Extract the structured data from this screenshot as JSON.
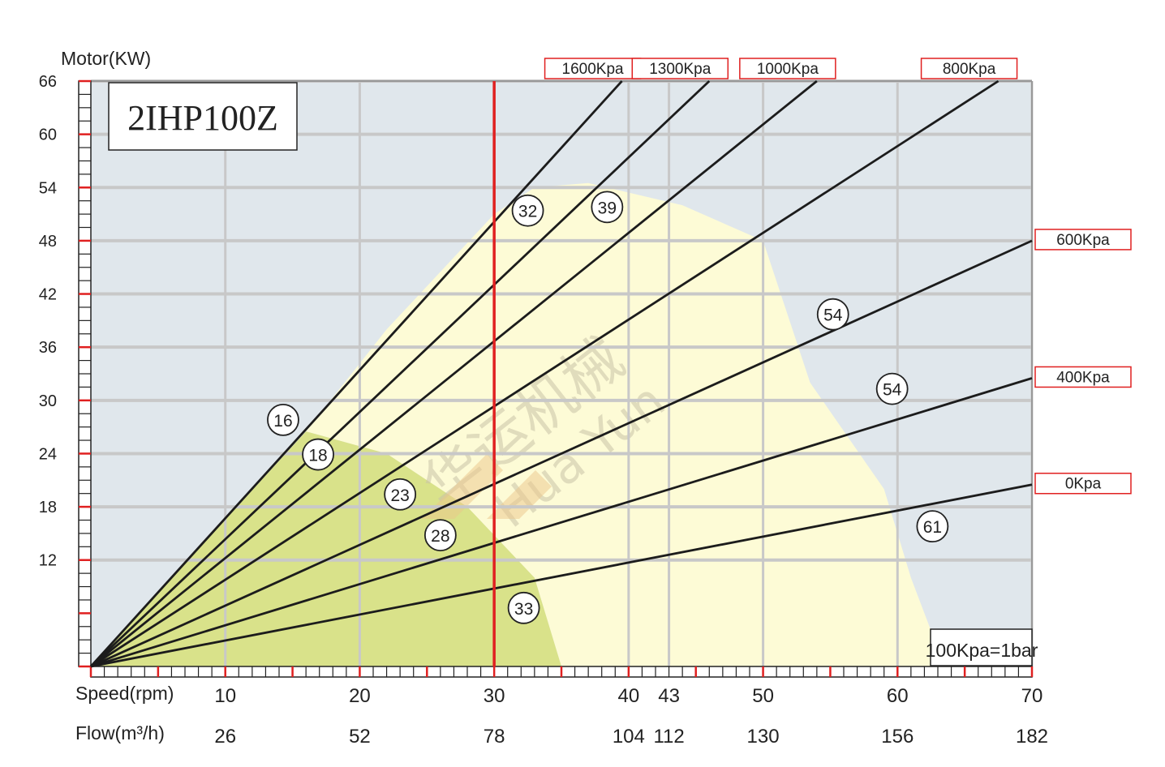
{
  "chart_data": {
    "type": "line",
    "title": "2IHP100Z",
    "ylabel": "Motor(KW)",
    "xlabel": "Speed(rpm)",
    "xlabel2": "Flow(m³/h)",
    "note": "100Kpa=1bar",
    "ylim": [
      0,
      66
    ],
    "xlim": [
      0,
      70
    ],
    "grid": true,
    "y_ticks": [
      12,
      18,
      24,
      30,
      36,
      42,
      48,
      54,
      60,
      66
    ],
    "x_ticks": [
      {
        "speed": 10,
        "flow": "26"
      },
      {
        "speed": 20,
        "flow": "52"
      },
      {
        "speed": 30,
        "flow": "78"
      },
      {
        "speed": 40,
        "flow": "104"
      },
      {
        "speed": 43,
        "flow": "112"
      },
      {
        "speed": 50,
        "flow": "130"
      },
      {
        "speed": 60,
        "flow": "156"
      },
      {
        "speed": 70,
        "flow": "182"
      }
    ],
    "series": [
      {
        "name": "1600Kpa",
        "x": [
          0,
          39.5
        ],
        "y": [
          0,
          66
        ],
        "label_side": "top"
      },
      {
        "name": "1300Kpa",
        "x": [
          0,
          46.0
        ],
        "y": [
          0,
          66
        ],
        "label_side": "top"
      },
      {
        "name": "1000Kpa",
        "x": [
          0,
          54.0
        ],
        "y": [
          0,
          66
        ],
        "label_side": "top"
      },
      {
        "name": "800Kpa",
        "x": [
          0,
          67.5
        ],
        "y": [
          0,
          66
        ],
        "label_side": "top"
      },
      {
        "name": "600Kpa",
        "x": [
          0,
          70
        ],
        "y": [
          0,
          48
        ],
        "label_side": "right"
      },
      {
        "name": "400Kpa",
        "x": [
          0,
          70
        ],
        "y": [
          0,
          32.5
        ],
        "label_side": "right"
      },
      {
        "name": "0Kpa",
        "x": [
          0,
          70
        ],
        "y": [
          0,
          20.5
        ],
        "label_side": "right"
      }
    ],
    "reference_line": {
      "x": 30,
      "color": "#e02020"
    },
    "regions": [
      {
        "color": "#fdfbd6",
        "outline": [
          [
            16,
            26.5
          ],
          [
            22,
            24
          ],
          [
            28,
            18
          ],
          [
            33,
            10
          ],
          [
            35,
            0
          ],
          [
            63.5,
            0
          ],
          [
            61,
            10
          ],
          [
            59,
            20
          ],
          [
            53.5,
            32
          ],
          [
            50,
            48
          ],
          [
            44,
            52
          ],
          [
            37,
            54.5
          ],
          [
            33,
            54
          ],
          [
            30,
            51
          ],
          [
            22,
            38
          ],
          [
            16,
            26.5
          ]
        ]
      },
      {
        "color": "#d9e28a",
        "outline": [
          [
            0,
            0
          ],
          [
            16,
            26.5
          ],
          [
            22,
            24
          ],
          [
            28,
            18
          ],
          [
            33,
            10
          ],
          [
            35,
            0
          ]
        ]
      }
    ],
    "annotations": [
      {
        "text": "16",
        "x": 14.3,
        "y": 27.8
      },
      {
        "text": "18",
        "x": 16.9,
        "y": 23.9
      },
      {
        "text": "23",
        "x": 23.0,
        "y": 19.4
      },
      {
        "text": "28",
        "x": 26.0,
        "y": 14.8
      },
      {
        "text": "33",
        "x": 32.2,
        "y": 6.6
      },
      {
        "text": "32",
        "x": 32.5,
        "y": 51.4
      },
      {
        "text": "39",
        "x": 38.4,
        "y": 51.8
      },
      {
        "text": "54",
        "x": 55.2,
        "y": 39.7
      },
      {
        "text": "54",
        "x": 59.6,
        "y": 31.3
      },
      {
        "text": "61",
        "x": 62.6,
        "y": 15.8
      }
    ],
    "watermark": {
      "cn": "华运机械",
      "en": "Hua Yun"
    },
    "colors": {
      "plot_bg": "#e0e7ec",
      "grid": "#c8c8c8",
      "line": "#1c1c1c",
      "accent": "#e02020",
      "pale_region": "#fdfbd6",
      "green_region": "#d9e28a"
    }
  }
}
